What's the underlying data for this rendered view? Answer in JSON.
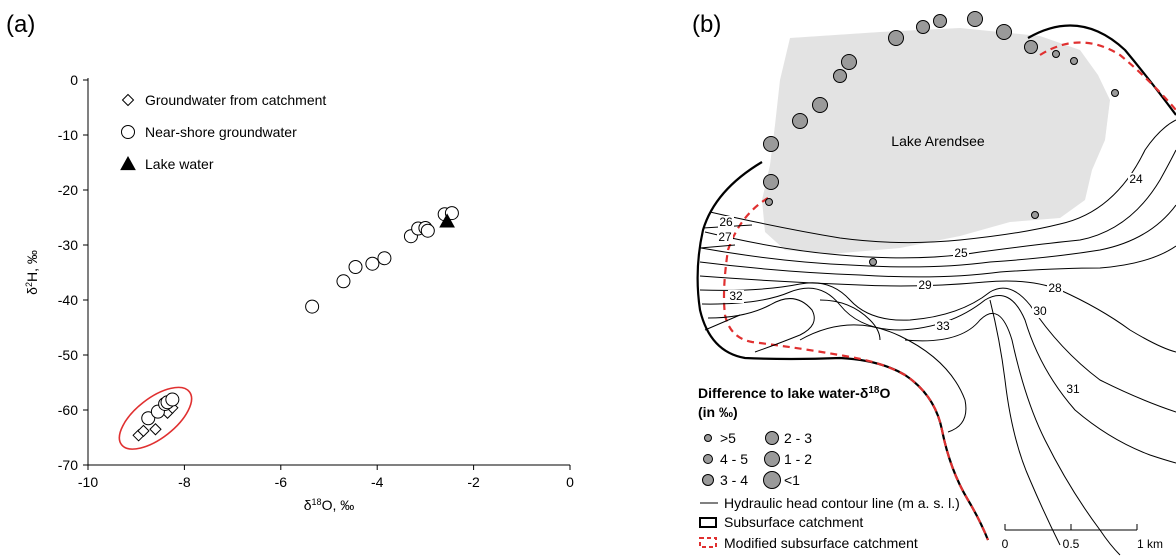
{
  "panel_a": {
    "label": "(a)",
    "chart_data": {
      "type": "scatter",
      "xlabel_parts": [
        "δ",
        "18",
        "O, ‰"
      ],
      "ylabel_parts": [
        "δ",
        "2",
        "H, ‰"
      ],
      "xlim": [
        -10,
        0
      ],
      "ylim": [
        -70,
        0
      ],
      "xticks": [
        -10,
        -8,
        -6,
        -4,
        -2,
        0
      ],
      "yticks": [
        0,
        -10,
        -20,
        -30,
        -40,
        -50,
        -60,
        -70
      ],
      "grid": false,
      "legend_position": "top-left",
      "series": [
        {
          "name": "Groundwater from catchment",
          "marker": "diamond",
          "points": [
            [
              -8.95,
              -64.6
            ],
            [
              -8.85,
              -63.8
            ],
            [
              -8.6,
              -63.5
            ],
            [
              -8.35,
              -60.5
            ],
            [
              -8.25,
              -59.6
            ]
          ]
        },
        {
          "name": "Near-shore groundwater",
          "marker": "circle",
          "points": [
            [
              -8.75,
              -61.5
            ],
            [
              -8.55,
              -60.3
            ],
            [
              -8.4,
              -58.9
            ],
            [
              -8.35,
              -58.6
            ],
            [
              -8.25,
              -58.1
            ],
            [
              -5.35,
              -41.2
            ],
            [
              -4.7,
              -36.6
            ],
            [
              -4.45,
              -34.0
            ],
            [
              -4.1,
              -33.4
            ],
            [
              -3.85,
              -32.4
            ],
            [
              -3.3,
              -28.4
            ],
            [
              -3.15,
              -27.0
            ],
            [
              -3.0,
              -26.9
            ],
            [
              -2.95,
              -27.4
            ],
            [
              -2.6,
              -24.4
            ],
            [
              -2.45,
              -24.2
            ]
          ]
        },
        {
          "name": "Lake water",
          "marker": "triangle",
          "points": [
            [
              -2.55,
              -25.7
            ]
          ]
        }
      ],
      "annotation": {
        "type": "ellipse",
        "color": "#e03030",
        "center": [
          -8.6,
          -61.5
        ],
        "note": ""
      }
    }
  },
  "panel_b": {
    "label": "(b)",
    "lake_name": "Lake Arendsee",
    "contour_labels": [
      "24",
      "25",
      "26",
      "27",
      "28",
      "29",
      "30",
      "31",
      "32",
      "33"
    ],
    "legend": {
      "title_prefix": "Difference to lake water-δ",
      "title_sup": "18",
      "title_suffix": "O",
      "title_line2": "(in ‰)",
      "classes": [
        ">5",
        "4 - 5",
        "3 - 4",
        "2 - 3",
        "1 - 2",
        "<1"
      ],
      "contour_line": "Hydraulic head contour line (m a. s. l.)",
      "subsurface_catchment": "Subsurface catchment",
      "modified_catchment": "Modified subsurface catchment"
    },
    "scale_bar": {
      "labels": [
        "0",
        "0.5",
        "1 km"
      ]
    },
    "colors": {
      "lake": "#e3e3e3",
      "symbol": "#9a9a9a",
      "modified": "#e03030"
    }
  }
}
